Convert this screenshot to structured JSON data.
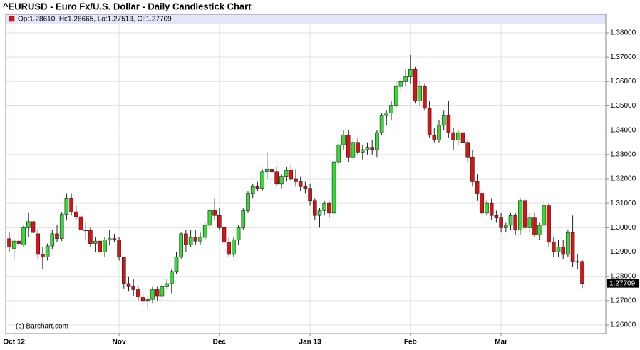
{
  "chart_data": {
    "type": "candlestick",
    "title": "^EURUSD - Euro Fx/U.S. Dollar - Daily Candlestick Chart",
    "legend_text": "Op:1.28610, Hi:1.28665, Lo:1.27513, Cl:1.27709",
    "watermark": "(c) Barchart.com",
    "up_color": "#33dd33",
    "down_color": "#dd1111",
    "grid": true,
    "ylim": [
      1.2565,
      1.3838
    ],
    "yticks": [
      {
        "value": 1.26,
        "label": "1.26000"
      },
      {
        "value": 1.27,
        "label": "1.27000"
      },
      {
        "value": 1.28,
        "label": "1.28000"
      },
      {
        "value": 1.29,
        "label": "1.29000"
      },
      {
        "value": 1.3,
        "label": "1.30000"
      },
      {
        "value": 1.31,
        "label": "1.31000"
      },
      {
        "value": 1.32,
        "label": "1.32000"
      },
      {
        "value": 1.33,
        "label": "1.33000"
      },
      {
        "value": 1.34,
        "label": "1.34000"
      },
      {
        "value": 1.35,
        "label": "1.35000"
      },
      {
        "value": 1.36,
        "label": "1.36000"
      },
      {
        "value": 1.37,
        "label": "1.37000"
      },
      {
        "value": 1.38,
        "label": "1.38000"
      }
    ],
    "categories": [
      null,
      "Oct 12",
      null,
      null,
      null,
      null,
      null,
      null,
      null,
      null,
      null,
      null,
      null,
      null,
      null,
      null,
      null,
      null,
      null,
      null,
      null,
      null,
      null,
      "Nov",
      null,
      null,
      null,
      null,
      null,
      null,
      null,
      null,
      null,
      null,
      null,
      null,
      null,
      null,
      null,
      null,
      null,
      null,
      null,
      null,
      "Dec",
      null,
      null,
      null,
      null,
      null,
      null,
      null,
      null,
      null,
      null,
      null,
      null,
      null,
      null,
      null,
      null,
      null,
      null,
      "Jan 13",
      null,
      null,
      null,
      null,
      null,
      null,
      null,
      null,
      null,
      null,
      null,
      null,
      null,
      null,
      null,
      null,
      null,
      null,
      null,
      null,
      "Feb",
      null,
      null,
      null,
      null,
      null,
      null,
      null,
      null,
      null,
      null,
      null,
      null,
      null,
      null,
      null,
      null,
      null,
      null,
      "Mar",
      null,
      null,
      null,
      null,
      null,
      null,
      null,
      null,
      null,
      null,
      null,
      null,
      null,
      null,
      null,
      null,
      null
    ],
    "open": [
      1.2955,
      1.2915,
      1.2945,
      1.293,
      1.3,
      1.3025,
      1.2975,
      1.289,
      1.288,
      1.2925,
      1.2975,
      1.2955,
      1.3055,
      1.312,
      1.3065,
      1.3045,
      1.299,
      1.299,
      1.2935,
      1.2945,
      1.29,
      1.295,
      1.2955,
      1.295,
      1.288,
      1.277,
      1.276,
      1.2745,
      1.2715,
      1.27,
      1.2705,
      1.2745,
      1.272,
      1.276,
      1.277,
      1.282,
      1.288,
      1.2975,
      1.293,
      1.296,
      1.2945,
      1.296,
      1.301,
      1.307,
      1.305,
      1.3,
      1.294,
      1.289,
      1.295,
      1.3,
      1.307,
      1.314,
      1.317,
      1.316,
      1.323,
      1.324,
      1.323,
      1.318,
      1.321,
      1.3235,
      1.32,
      1.319,
      1.317,
      1.316,
      1.311,
      1.305,
      1.307,
      1.31,
      1.306,
      1.327,
      1.334,
      1.338,
      1.329,
      1.335,
      1.331,
      1.332,
      1.333,
      1.332,
      1.339,
      1.346,
      1.347,
      1.35,
      1.358,
      1.36,
      1.362,
      1.365,
      1.352,
      1.358,
      1.349,
      1.338,
      1.336,
      1.342,
      1.346,
      1.339,
      1.336,
      1.339,
      1.335,
      1.329,
      1.319,
      1.314,
      1.306,
      1.31,
      1.305,
      1.304,
      1.3,
      1.301,
      1.305,
      1.299,
      1.311,
      1.3,
      1.304,
      1.297,
      1.301,
      1.309,
      1.294,
      1.29,
      1.292,
      1.289,
      1.298,
      1.286,
      1.2861
    ],
    "high": [
      1.298,
      1.2955,
      1.2975,
      1.301,
      1.306,
      1.304,
      1.2995,
      1.292,
      1.2935,
      1.299,
      1.301,
      1.3065,
      1.314,
      1.314,
      1.309,
      1.3075,
      1.302,
      1.3,
      1.296,
      1.295,
      1.296,
      1.299,
      1.2975,
      1.296,
      1.288,
      1.28,
      1.279,
      1.276,
      1.274,
      1.272,
      1.276,
      1.276,
      1.277,
      1.279,
      1.283,
      1.29,
      1.298,
      1.299,
      1.299,
      1.299,
      1.298,
      1.302,
      1.308,
      1.312,
      1.308,
      1.301,
      1.296,
      1.296,
      1.301,
      1.308,
      1.315,
      1.318,
      1.319,
      1.324,
      1.331,
      1.326,
      1.325,
      1.322,
      1.325,
      1.326,
      1.324,
      1.321,
      1.319,
      1.318,
      1.312,
      1.308,
      1.311,
      1.311,
      1.328,
      1.335,
      1.34,
      1.34,
      1.337,
      1.337,
      1.334,
      1.335,
      1.336,
      1.34,
      1.347,
      1.348,
      1.352,
      1.36,
      1.362,
      1.365,
      1.371,
      1.366,
      1.36,
      1.359,
      1.352,
      1.341,
      1.344,
      1.348,
      1.352,
      1.341,
      1.34,
      1.342,
      1.336,
      1.332,
      1.322,
      1.315,
      1.311,
      1.312,
      1.307,
      1.306,
      1.302,
      1.306,
      1.306,
      1.312,
      1.312,
      1.306,
      1.306,
      1.302,
      1.311,
      1.31,
      1.296,
      1.295,
      1.295,
      1.299,
      1.305,
      1.289,
      1.28665
    ],
    "low": [
      1.29,
      1.287,
      1.292,
      1.292,
      1.296,
      1.296,
      1.287,
      1.283,
      1.2865,
      1.291,
      1.294,
      1.2945,
      1.303,
      1.305,
      1.303,
      1.298,
      1.295,
      1.292,
      1.29,
      1.289,
      1.288,
      1.293,
      1.294,
      1.2865,
      1.275,
      1.274,
      1.272,
      1.27,
      1.268,
      1.2665,
      1.269,
      1.27,
      1.27,
      1.275,
      1.273,
      1.281,
      1.287,
      1.29,
      1.292,
      1.293,
      1.293,
      1.295,
      1.299,
      1.303,
      1.299,
      1.292,
      1.288,
      1.288,
      1.293,
      1.299,
      1.306,
      1.312,
      1.315,
      1.315,
      1.32,
      1.32,
      1.317,
      1.316,
      1.319,
      1.319,
      1.317,
      1.315,
      1.314,
      1.309,
      1.303,
      1.3,
      1.305,
      1.304,
      1.305,
      1.326,
      1.332,
      1.327,
      1.328,
      1.33,
      1.328,
      1.33,
      1.33,
      1.329,
      1.338,
      1.342,
      1.344,
      1.349,
      1.355,
      1.358,
      1.359,
      1.351,
      1.35,
      1.348,
      1.337,
      1.335,
      1.335,
      1.34,
      1.337,
      1.332,
      1.334,
      1.334,
      1.327,
      1.317,
      1.311,
      1.305,
      1.305,
      1.303,
      1.302,
      1.298,
      1.298,
      1.299,
      1.297,
      1.297,
      1.298,
      1.298,
      1.296,
      1.295,
      1.3,
      1.292,
      1.288,
      1.288,
      1.287,
      1.288,
      1.284,
      1.283,
      1.27513
    ],
    "close": [
      1.292,
      1.2945,
      1.2935,
      1.3,
      1.3025,
      1.298,
      1.289,
      1.288,
      1.2925,
      1.2975,
      1.2955,
      1.3055,
      1.312,
      1.3065,
      1.3045,
      1.299,
      1.299,
      1.2935,
      1.2945,
      1.29,
      1.295,
      1.2955,
      1.295,
      1.288,
      1.277,
      1.276,
      1.2745,
      1.2715,
      1.27,
      1.2705,
      1.2745,
      1.272,
      1.276,
      1.277,
      1.282,
      1.288,
      1.2975,
      1.293,
      1.296,
      1.2945,
      1.296,
      1.301,
      1.307,
      1.305,
      1.3,
      1.294,
      1.289,
      1.295,
      1.3,
      1.307,
      1.314,
      1.317,
      1.316,
      1.323,
      1.324,
      1.323,
      1.318,
      1.321,
      1.3235,
      1.32,
      1.319,
      1.317,
      1.316,
      1.311,
      1.305,
      1.307,
      1.31,
      1.306,
      1.327,
      1.334,
      1.338,
      1.329,
      1.335,
      1.331,
      1.332,
      1.333,
      1.332,
      1.339,
      1.346,
      1.347,
      1.35,
      1.358,
      1.36,
      1.362,
      1.365,
      1.352,
      1.358,
      1.349,
      1.338,
      1.336,
      1.342,
      1.346,
      1.339,
      1.336,
      1.339,
      1.335,
      1.329,
      1.319,
      1.314,
      1.306,
      1.31,
      1.305,
      1.304,
      1.3,
      1.301,
      1.305,
      1.299,
      1.311,
      1.3,
      1.304,
      1.297,
      1.301,
      1.309,
      1.294,
      1.29,
      1.292,
      1.289,
      1.298,
      1.286,
      1.2861,
      1.27709
    ]
  }
}
